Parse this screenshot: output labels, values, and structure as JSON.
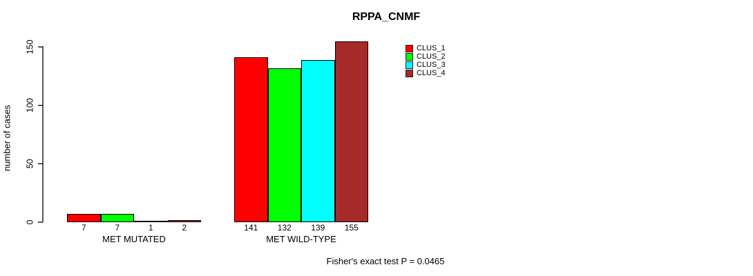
{
  "chart_data": {
    "type": "bar",
    "title": "RPPA_CNMF",
    "xlabel": "",
    "ylabel": "number of cases",
    "categories": [
      "MET MUTATED",
      "MET WILD-TYPE"
    ],
    "series": [
      {
        "name": "CLUS_1",
        "color": "#FF0000",
        "values": [
          7,
          141
        ]
      },
      {
        "name": "CLUS_2",
        "color": "#00FF00",
        "values": [
          7,
          132
        ]
      },
      {
        "name": "CLUS_3",
        "color": "#00FFFF",
        "values": [
          1,
          139
        ]
      },
      {
        "name": "CLUS_4",
        "color": "#A52A2A",
        "values": [
          2,
          155
        ]
      }
    ],
    "yticks": [
      0,
      50,
      100,
      150
    ],
    "ylim": [
      0,
      155
    ],
    "grid": false,
    "bar_value_labels": true,
    "legend_position": "top-right",
    "annotation": "Fisher's exact test P = 0.0465"
  },
  "colors": {
    "axis": "#000000",
    "text": "#000000",
    "background": "#FFFFFF"
  }
}
